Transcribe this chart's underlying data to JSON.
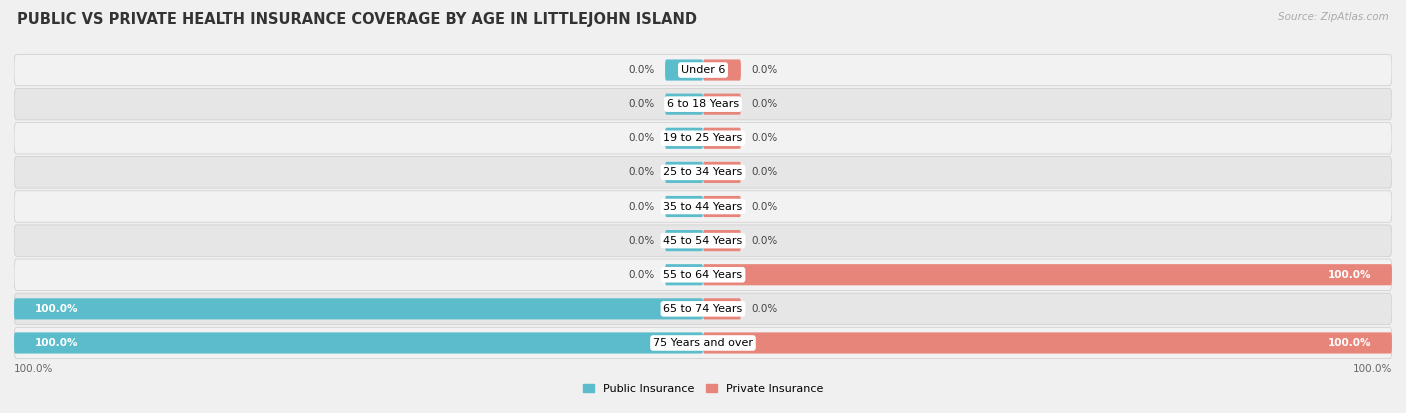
{
  "title": "PUBLIC VS PRIVATE HEALTH INSURANCE COVERAGE BY AGE IN LITTLEJOHN ISLAND",
  "source": "Source: ZipAtlas.com",
  "categories": [
    "Under 6",
    "6 to 18 Years",
    "19 to 25 Years",
    "25 to 34 Years",
    "35 to 44 Years",
    "45 to 54 Years",
    "55 to 64 Years",
    "65 to 74 Years",
    "75 Years and over"
  ],
  "public_values": [
    0.0,
    0.0,
    0.0,
    0.0,
    0.0,
    0.0,
    0.0,
    100.0,
    100.0
  ],
  "private_values": [
    0.0,
    0.0,
    0.0,
    0.0,
    0.0,
    0.0,
    100.0,
    0.0,
    100.0
  ],
  "public_color": "#5bbccc",
  "private_color": "#e8857a",
  "public_label": "Public Insurance",
  "private_label": "Private Insurance",
  "axis_label_left": "100.0%",
  "axis_label_right": "100.0%",
  "bar_height": 0.62,
  "stub_size": 5.5,
  "bg_light": "#f2f2f2",
  "bg_dark": "#e6e6e6",
  "title_fontsize": 10.5,
  "label_fontsize": 8,
  "value_fontsize": 7.5,
  "source_fontsize": 7.5
}
